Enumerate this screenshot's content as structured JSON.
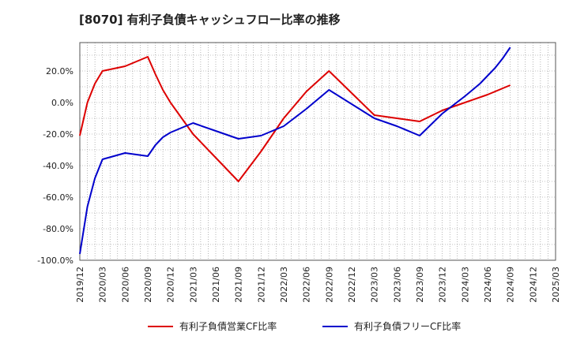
{
  "chart_data": {
    "type": "line",
    "title": "[8070]  有利子負債キャッシュフロー比率の推移",
    "xlabel": "",
    "ylabel": "",
    "x_ticks": [
      "2019/12",
      "2020/03",
      "2020/06",
      "2020/09",
      "2020/12",
      "2021/03",
      "2021/06",
      "2021/09",
      "2021/12",
      "2022/03",
      "2022/06",
      "2022/09",
      "2022/12",
      "2023/03",
      "2023/06",
      "2023/09",
      "2023/12",
      "2024/03",
      "2024/06",
      "2024/09",
      "2024/12",
      "2025/03"
    ],
    "y_ticks": [
      "-100.0%",
      "-80.0%",
      "-60.0%",
      "-40.0%",
      "-20.0%",
      "0.0%",
      "20.0%"
    ],
    "y_tick_values": [
      -100,
      -80,
      -60,
      -40,
      -20,
      0,
      20
    ],
    "ylim": [
      -100,
      38
    ],
    "grid": true,
    "legend_position": "bottom",
    "series": [
      {
        "name": "有利子負債営業CF比率",
        "color": "#dd0000",
        "x": [
          "2019/12",
          "2020/01",
          "2020/02",
          "2020/03",
          "2020/06",
          "2020/09",
          "2020/10",
          "2020/11",
          "2020/12",
          "2021/03",
          "2021/06",
          "2021/09",
          "2021/12",
          "2022/03",
          "2022/06",
          "2022/09",
          "2022/12",
          "2023/03",
          "2023/06",
          "2023/09",
          "2023/12",
          "2024/03",
          "2024/06",
          "2024/09"
        ],
        "values": [
          -21,
          0,
          12,
          20,
          23,
          29,
          18,
          8,
          0,
          -20,
          -35,
          -50,
          -31,
          -10,
          7,
          20,
          6,
          -8,
          -10,
          -12,
          -5,
          0,
          5,
          11
        ]
      },
      {
        "name": "有利子負債フリーCF比率",
        "color": "#0000cc",
        "x": [
          "2019/12",
          "2020/01",
          "2020/02",
          "2020/03",
          "2020/06",
          "2020/09",
          "2020/10",
          "2020/11",
          "2020/12",
          "2021/03",
          "2021/06",
          "2021/09",
          "2021/12",
          "2022/03",
          "2022/06",
          "2022/09",
          "2022/12",
          "2023/03",
          "2023/06",
          "2023/09",
          "2023/12",
          "2024/03",
          "2024/04",
          "2024/05",
          "2024/06",
          "2024/07",
          "2024/08",
          "2024/09"
        ],
        "values": [
          -96,
          -66,
          -48,
          -36,
          -32,
          -34,
          -27,
          -22,
          -19,
          -13,
          -18,
          -23,
          -21,
          -15,
          -4,
          8,
          -1,
          -10,
          -15,
          -21,
          -7,
          4,
          8,
          12,
          17,
          22,
          28,
          35
        ]
      }
    ]
  }
}
